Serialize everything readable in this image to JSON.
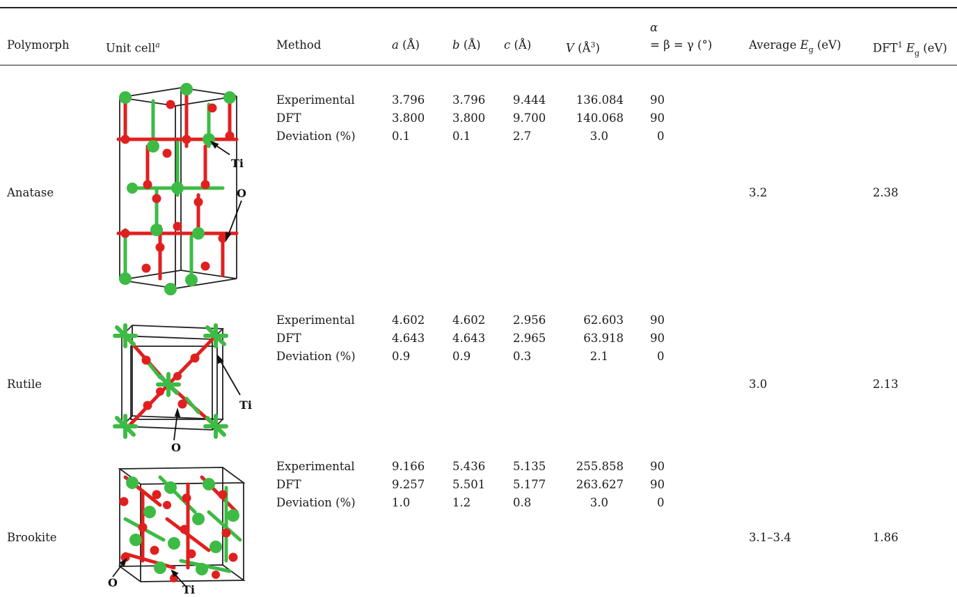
{
  "table": {
    "headers": {
      "polymorph": "Polymorph",
      "unit_cell": "Unit cell",
      "unit_cell_note": "a",
      "method": "Method",
      "a": "a",
      "b": "b",
      "c": "c",
      "v": "V",
      "angle_alpha": "α",
      "angle_rest": "= β = γ (°)",
      "unit_len": "(Å)",
      "unit_vol_open": "(Å",
      "unit_vol_exp": "3",
      "unit_vol_close": ")",
      "avg_eg_prefix": "Average ",
      "eg_symbol": "E",
      "eg_sub": "g",
      "eg_unit": " (eV)",
      "dft_prefix": "DFT",
      "dft_sup": "1"
    },
    "rows": [
      {
        "polymorph": "Anatase",
        "methods": [
          "Experimental",
          "DFT",
          "Deviation (%)"
        ],
        "a": [
          "3.796",
          "3.800",
          "0.1"
        ],
        "b": [
          "3.796",
          "3.800",
          "0.1"
        ],
        "c": [
          "9.444",
          "9.700",
          "2.7"
        ],
        "v": [
          "136.084",
          "140.068",
          "3.0"
        ],
        "angle": [
          "90",
          "90",
          "0"
        ],
        "avg_eg": "3.2",
        "dft_eg": "2.38",
        "labels": {
          "ti": "Ti",
          "o": "O"
        }
      },
      {
        "polymorph": "Rutile",
        "methods": [
          "Experimental",
          "DFT",
          "Deviation (%)"
        ],
        "a": [
          "4.602",
          "4.643",
          "0.9"
        ],
        "b": [
          "4.602",
          "4.643",
          "0.9"
        ],
        "c": [
          "2.956",
          "2.965",
          "0.3"
        ],
        "v": [
          "62.603",
          "63.918",
          "2.1"
        ],
        "angle": [
          "90",
          "90",
          "0"
        ],
        "avg_eg": "3.0",
        "dft_eg": "2.13",
        "labels": {
          "ti": "Ti",
          "o": "O"
        }
      },
      {
        "polymorph": "Brookite",
        "methods": [
          "Experimental",
          "DFT",
          "Deviation (%)"
        ],
        "a": [
          "9.166",
          "9.257",
          "1.0"
        ],
        "b": [
          "5.436",
          "5.501",
          "1.2"
        ],
        "c": [
          "5.135",
          "5.177",
          "0.8"
        ],
        "v": [
          "255.858",
          "263.627",
          "3.0"
        ],
        "angle": [
          "90",
          "90",
          "0"
        ],
        "avg_eg": "3.1–3.4",
        "dft_eg": "1.86",
        "labels": {
          "ti": "Ti",
          "o": "O"
        }
      }
    ],
    "colors": {
      "ti": "#3dbb45",
      "o": "#e0201f",
      "frame": "#222222"
    }
  }
}
